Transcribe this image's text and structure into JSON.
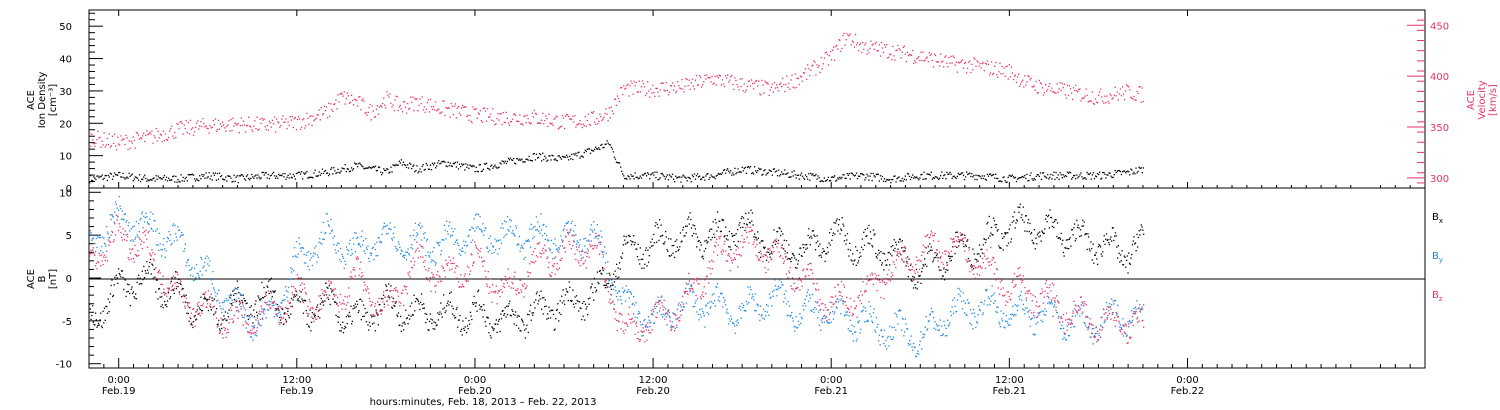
{
  "colors": {
    "black": "#000000",
    "pink": "#e8336a",
    "blue": "#1e88e5"
  },
  "x_axis": {
    "title": "hours:minutes, Feb. 18, 2013 – Feb. 22, 2013",
    "domain_hours": [
      -2,
      88
    ],
    "ticks": [
      {
        "h": 0,
        "time": "0:00",
        "date": "Feb.19"
      },
      {
        "h": 12,
        "time": "12:00",
        "date": "Feb.19"
      },
      {
        "h": 24,
        "time": "0:00",
        "date": "Feb.20"
      },
      {
        "h": 36,
        "time": "12:00",
        "date": "Feb.20"
      },
      {
        "h": 48,
        "time": "0:00",
        "date": "Feb.21"
      },
      {
        "h": 60,
        "time": "12:00",
        "date": "Feb.21"
      },
      {
        "h": 72,
        "time": "0:00",
        "date": "Feb.22"
      }
    ]
  },
  "chart_data": [
    {
      "type": "scatter",
      "panel": "top",
      "ylabel_left": [
        "ACE",
        "Ion Density",
        "[cm⁻³]"
      ],
      "ylabel_right": [
        "ACE",
        "Velocity",
        "[km/s]"
      ],
      "y_left_lim": [
        0,
        55
      ],
      "y_left_ticks": [
        0,
        10,
        20,
        30,
        40,
        50
      ],
      "y_right_lim": [
        290,
        465
      ],
      "y_right_ticks": [
        300,
        350,
        400,
        450
      ],
      "series": [
        {
          "color": "#000000",
          "axis": "left",
          "points": [
            [
              -2,
              3
            ],
            [
              0,
              4
            ],
            [
              2,
              3
            ],
            [
              4,
              3
            ],
            [
              6,
              4
            ],
            [
              8,
              3
            ],
            [
              10,
              4
            ],
            [
              12,
              4
            ],
            [
              14,
              5
            ],
            [
              16,
              7
            ],
            [
              18,
              5
            ],
            [
              19,
              8
            ],
            [
              20,
              6
            ],
            [
              22,
              8
            ],
            [
              24,
              6
            ],
            [
              26,
              8
            ],
            [
              28,
              10
            ],
            [
              30,
              9
            ],
            [
              32,
              12
            ],
            [
              33,
              14
            ],
            [
              34,
              4
            ],
            [
              36,
              4
            ],
            [
              38,
              3
            ],
            [
              40,
              4
            ],
            [
              42,
              6
            ],
            [
              44,
              5
            ],
            [
              46,
              4
            ],
            [
              48,
              3
            ],
            [
              50,
              4
            ],
            [
              52,
              3
            ],
            [
              54,
              4
            ],
            [
              56,
              4
            ],
            [
              58,
              4
            ],
            [
              60,
              3
            ],
            [
              62,
              4
            ],
            [
              64,
              4
            ],
            [
              66,
              4
            ],
            [
              68,
              5
            ],
            [
              69,
              6
            ]
          ]
        },
        {
          "color": "#e8336a",
          "axis": "right",
          "points": [
            [
              -2,
              340
            ],
            [
              0,
              335
            ],
            [
              2,
              340
            ],
            [
              4,
              348
            ],
            [
              6,
              352
            ],
            [
              8,
              353
            ],
            [
              10,
              352
            ],
            [
              12,
              355
            ],
            [
              14,
              365
            ],
            [
              15,
              380
            ],
            [
              16,
              375
            ],
            [
              17,
              365
            ],
            [
              18,
              378
            ],
            [
              19,
              370
            ],
            [
              20,
              375
            ],
            [
              22,
              368
            ],
            [
              24,
              362
            ],
            [
              26,
              360
            ],
            [
              28,
              360
            ],
            [
              30,
              355
            ],
            [
              32,
              358
            ],
            [
              33,
              365
            ],
            [
              34,
              388
            ],
            [
              36,
              388
            ],
            [
              38,
              390
            ],
            [
              40,
              398
            ],
            [
              42,
              392
            ],
            [
              44,
              387
            ],
            [
              46,
              400
            ],
            [
              48,
              420
            ],
            [
              49,
              440
            ],
            [
              50,
              430
            ],
            [
              52,
              425
            ],
            [
              54,
              420
            ],
            [
              56,
              413
            ],
            [
              58,
              410
            ],
            [
              60,
              405
            ],
            [
              61,
              395
            ],
            [
              62,
              390
            ],
            [
              64,
              385
            ],
            [
              66,
              380
            ],
            [
              68,
              385
            ],
            [
              69,
              382
            ]
          ]
        }
      ]
    },
    {
      "type": "scatter",
      "panel": "bottom",
      "ylabel": [
        "ACE",
        "B",
        "[nT]"
      ],
      "ylim": [
        -10.5,
        10.5
      ],
      "y_ticks": [
        -10,
        -5,
        0,
        5,
        10
      ],
      "legend": [
        "Bx",
        "By",
        "Bz"
      ],
      "series": [
        {
          "name": "Bx",
          "color": "#000000",
          "points": [
            [
              -2,
              -5
            ],
            [
              0,
              -1
            ],
            [
              2,
              0
            ],
            [
              4,
              -2
            ],
            [
              6,
              -4
            ],
            [
              8,
              -3
            ],
            [
              10,
              -2
            ],
            [
              12,
              -4
            ],
            [
              14,
              -3
            ],
            [
              16,
              -5
            ],
            [
              18,
              -3
            ],
            [
              20,
              -4
            ],
            [
              22,
              -4
            ],
            [
              24,
              -4
            ],
            [
              26,
              -5
            ],
            [
              28,
              -4
            ],
            [
              30,
              -3
            ],
            [
              32,
              -2
            ],
            [
              34,
              3
            ],
            [
              36,
              4
            ],
            [
              38,
              5
            ],
            [
              40,
              5
            ],
            [
              42,
              6
            ],
            [
              44,
              4
            ],
            [
              46,
              3
            ],
            [
              48,
              5
            ],
            [
              50,
              4
            ],
            [
              52,
              3
            ],
            [
              54,
              1
            ],
            [
              56,
              3
            ],
            [
              58,
              4
            ],
            [
              60,
              6
            ],
            [
              62,
              6
            ],
            [
              64,
              5
            ],
            [
              66,
              4
            ],
            [
              68,
              3
            ],
            [
              69,
              4
            ]
          ]
        },
        {
          "name": "By",
          "color": "#1e88e5",
          "points": [
            [
              -2,
              4
            ],
            [
              0,
              7
            ],
            [
              2,
              6
            ],
            [
              4,
              4
            ],
            [
              6,
              0
            ],
            [
              8,
              -4
            ],
            [
              10,
              -5
            ],
            [
              12,
              2
            ],
            [
              14,
              5
            ],
            [
              16,
              3
            ],
            [
              18,
              5
            ],
            [
              20,
              4
            ],
            [
              22,
              4
            ],
            [
              24,
              5
            ],
            [
              26,
              5
            ],
            [
              28,
              5
            ],
            [
              30,
              5
            ],
            [
              32,
              5
            ],
            [
              34,
              -3
            ],
            [
              36,
              -5
            ],
            [
              38,
              -3
            ],
            [
              40,
              -3
            ],
            [
              42,
              -4
            ],
            [
              44,
              -2
            ],
            [
              46,
              -4
            ],
            [
              48,
              -4
            ],
            [
              50,
              -5
            ],
            [
              52,
              -6
            ],
            [
              54,
              -7
            ],
            [
              56,
              -4
            ],
            [
              58,
              -3
            ],
            [
              60,
              -4
            ],
            [
              62,
              -4
            ],
            [
              64,
              -5
            ],
            [
              66,
              -5
            ],
            [
              68,
              -4
            ],
            [
              69,
              -5
            ]
          ]
        },
        {
          "name": "Bz",
          "color": "#e8336a",
          "points": [
            [
              -2,
              2
            ],
            [
              0,
              5
            ],
            [
              2,
              3
            ],
            [
              4,
              -2
            ],
            [
              6,
              -4
            ],
            [
              8,
              -5
            ],
            [
              10,
              -4
            ],
            [
              12,
              -2
            ],
            [
              14,
              -3
            ],
            [
              16,
              0
            ],
            [
              18,
              -4
            ],
            [
              20,
              2
            ],
            [
              22,
              0
            ],
            [
              24,
              2
            ],
            [
              26,
              -2
            ],
            [
              28,
              2
            ],
            [
              30,
              3
            ],
            [
              32,
              4
            ],
            [
              34,
              -6
            ],
            [
              36,
              -5
            ],
            [
              38,
              -3
            ],
            [
              40,
              2
            ],
            [
              42,
              4
            ],
            [
              44,
              3
            ],
            [
              46,
              0
            ],
            [
              48,
              -3
            ],
            [
              50,
              -2
            ],
            [
              52,
              1
            ],
            [
              54,
              3
            ],
            [
              56,
              4
            ],
            [
              58,
              2
            ],
            [
              60,
              -1
            ],
            [
              62,
              -2
            ],
            [
              64,
              -4
            ],
            [
              66,
              -5
            ],
            [
              68,
              -5
            ],
            [
              69,
              -6
            ]
          ]
        }
      ]
    }
  ]
}
